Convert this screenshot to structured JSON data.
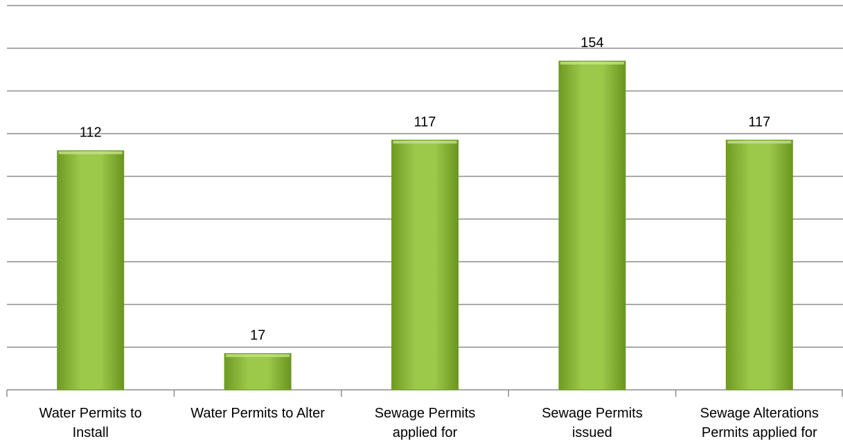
{
  "chart_data": {
    "type": "bar",
    "categories": [
      "Water Permits to Install",
      "Water Permits to Alter",
      "Sewage Permits applied for",
      "Sewage Permits issued",
      "Sewage Alterations Permits applied for"
    ],
    "values": [
      112,
      17,
      117,
      154,
      117
    ],
    "color": "#8db83a",
    "ylim": [
      0,
      180
    ],
    "yticks": [
      0,
      20,
      40,
      60,
      80,
      100,
      120,
      140,
      160,
      180
    ],
    "grid": true
  }
}
